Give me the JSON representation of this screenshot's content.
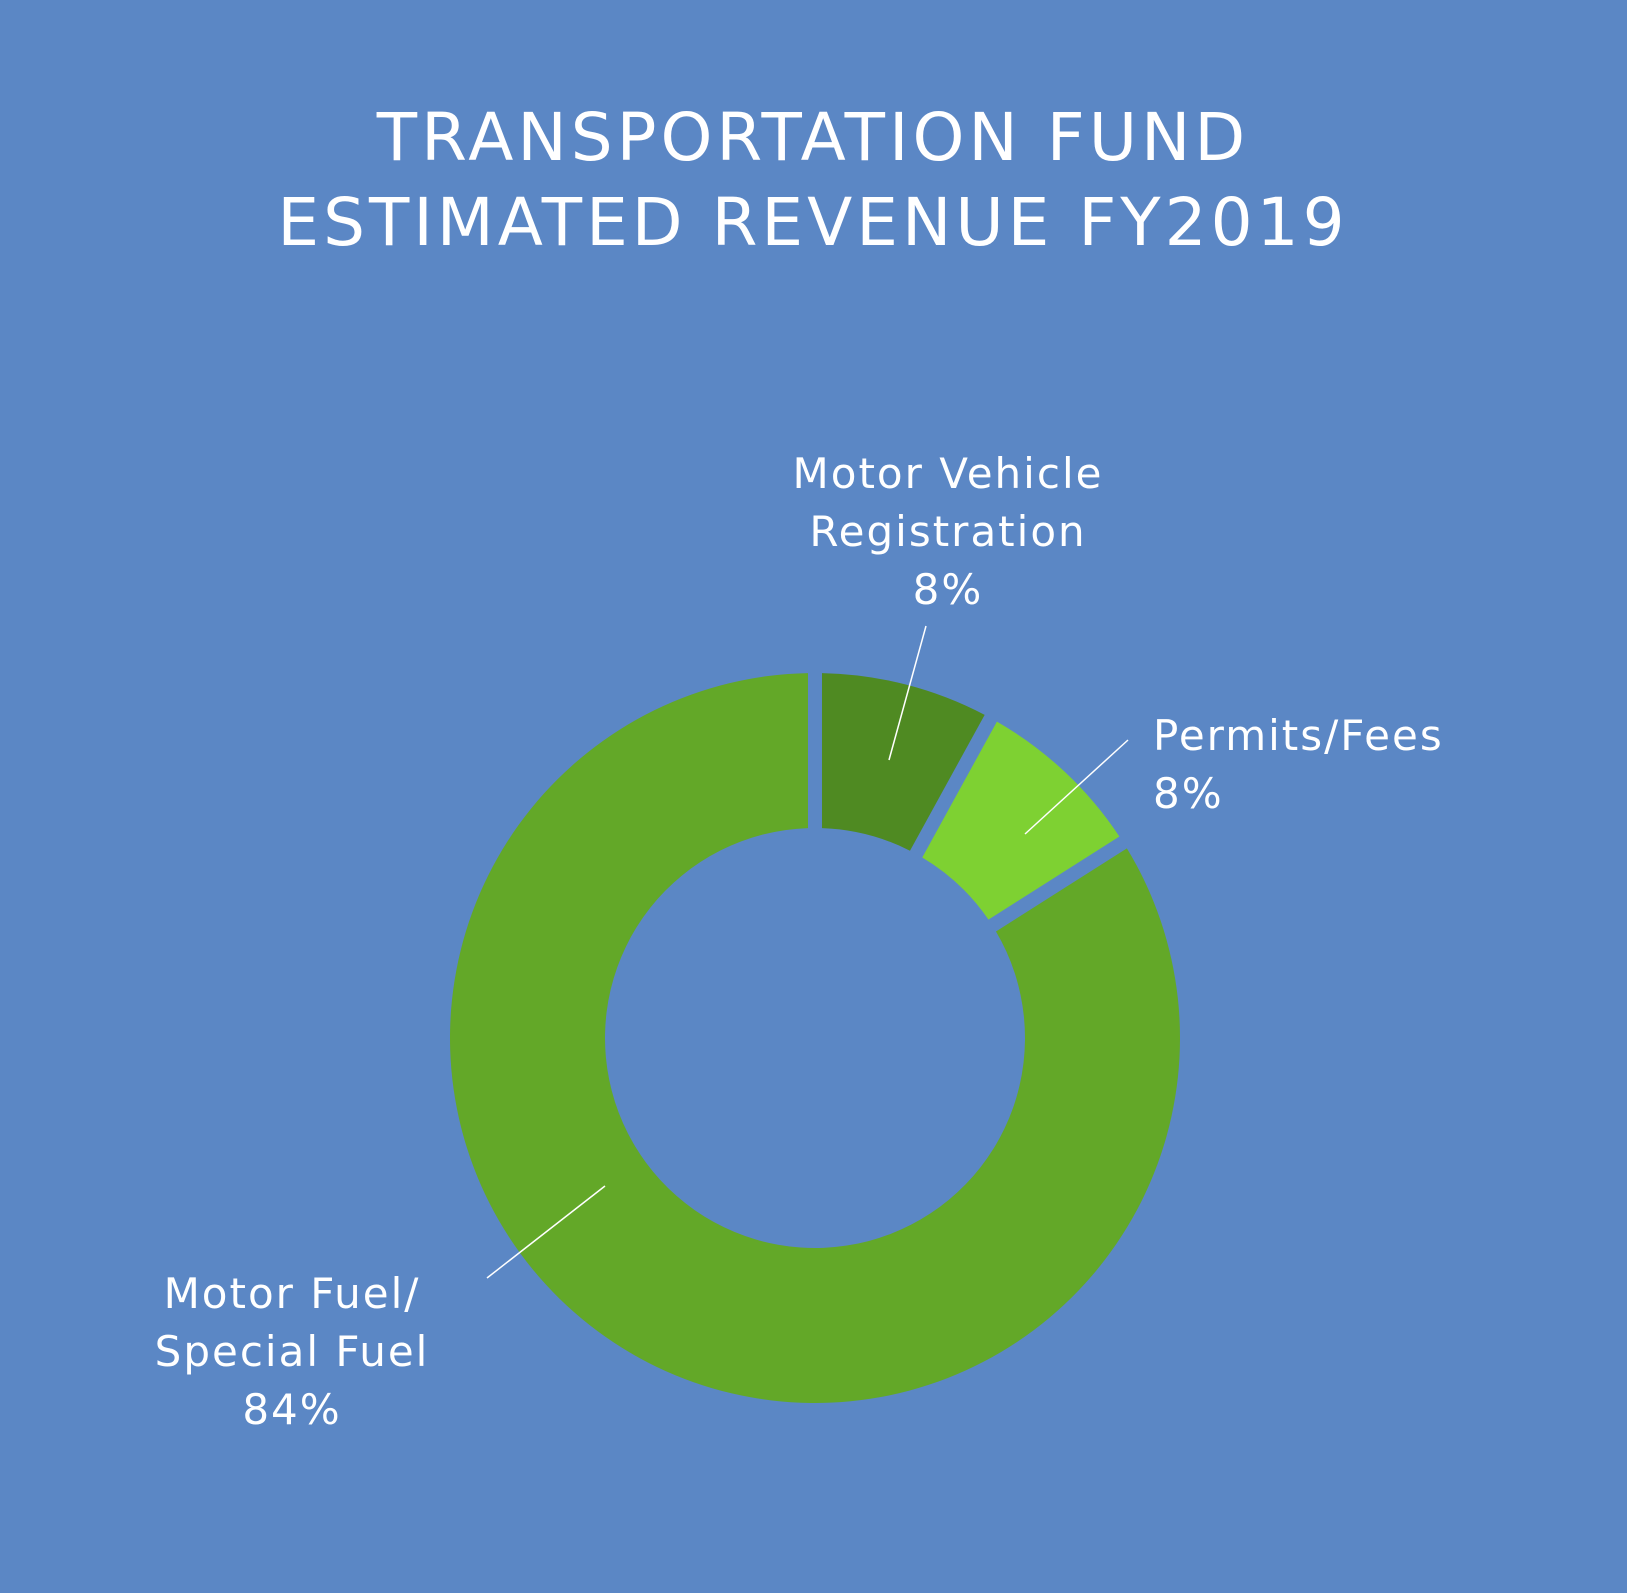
{
  "chart_data": {
    "type": "pie",
    "donut": true,
    "title": [
      "TRANSPORTATION FUND",
      "ESTIMATED REVENUE FY2019"
    ],
    "categories": [
      "Motor Vehicle Registration",
      "Permits/Fees",
      "Motor Fuel/ Special Fuel"
    ],
    "values": [
      8,
      8,
      84
    ],
    "unit": "%",
    "data_labels": [
      [
        "Motor Vehicle",
        "Registration",
        "8%"
      ],
      [
        "Permits/Fees",
        "8%"
      ],
      [
        "Motor Fuel/",
        "Special Fuel",
        "84%"
      ]
    ],
    "colors": [
      "#4f8a22",
      "#7ed132",
      "#63a828"
    ],
    "background_color": "#5b87c5",
    "text_color": "#ffffff",
    "legend": "none"
  }
}
